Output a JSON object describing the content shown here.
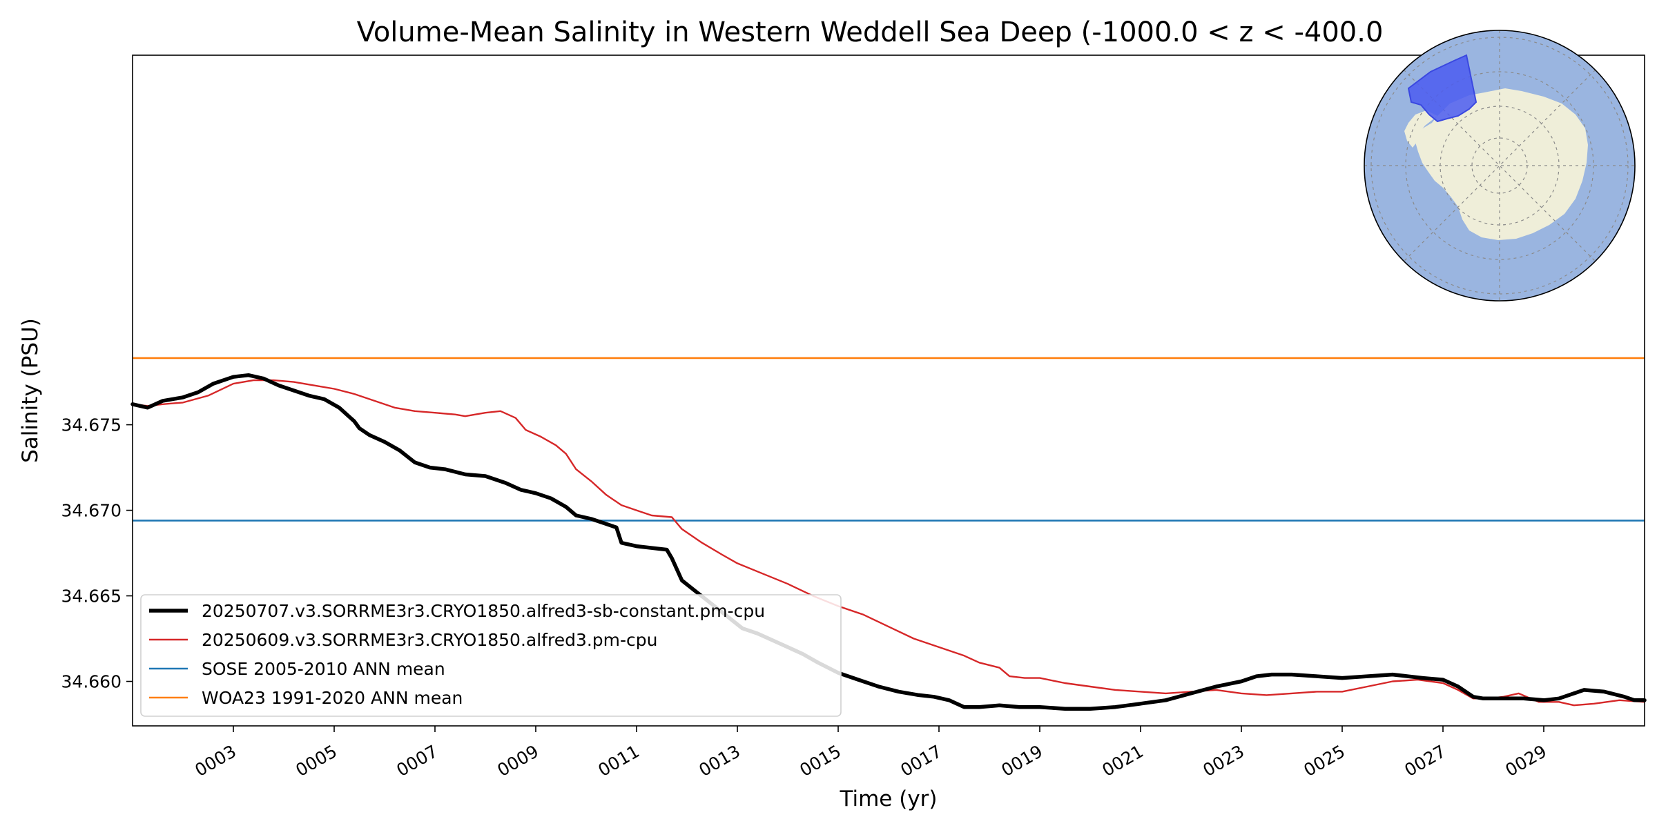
{
  "chart_data": {
    "type": "line",
    "title": "Volume-Mean Salinity in Western Weddell Sea Deep (-1000.0 < z < -400.0",
    "xlabel": "Time (yr)",
    "ylabel": "Salinity (PSU)",
    "xlim": [
      1,
      31
    ],
    "ylim": [
      34.6574,
      34.6966
    ],
    "x_ticks": [
      {
        "value": 3,
        "label": "0003"
      },
      {
        "value": 5,
        "label": "0005"
      },
      {
        "value": 7,
        "label": "0007"
      },
      {
        "value": 9,
        "label": "0009"
      },
      {
        "value": 11,
        "label": "0011"
      },
      {
        "value": 13,
        "label": "0013"
      },
      {
        "value": 15,
        "label": "0015"
      },
      {
        "value": 17,
        "label": "0017"
      },
      {
        "value": 19,
        "label": "0019"
      },
      {
        "value": 21,
        "label": "0021"
      },
      {
        "value": 23,
        "label": "0023"
      },
      {
        "value": 25,
        "label": "0025"
      },
      {
        "value": 27,
        "label": "0027"
      },
      {
        "value": 29,
        "label": "0029"
      }
    ],
    "y_ticks": [
      {
        "value": 34.66,
        "label": "34.660"
      },
      {
        "value": 34.665,
        "label": "34.665"
      },
      {
        "value": 34.67,
        "label": "34.670"
      },
      {
        "value": 34.675,
        "label": "34.675"
      }
    ],
    "grid": false,
    "legend_position": "lower-left",
    "series": [
      {
        "name": "20250707.v3.SORRME3r3.CRYO1850.alfred3-sb-constant.pm-cpu",
        "color": "#000000",
        "style": "thick",
        "x": [
          1.0,
          1.3,
          1.6,
          2.0,
          2.3,
          2.6,
          3.0,
          3.3,
          3.6,
          3.9,
          4.2,
          4.5,
          4.8,
          5.1,
          5.4,
          5.5,
          5.7,
          6.0,
          6.3,
          6.6,
          6.9,
          7.2,
          7.6,
          8.0,
          8.4,
          8.7,
          9.0,
          9.3,
          9.6,
          9.8,
          10.1,
          10.4,
          10.6,
          10.7,
          11.0,
          11.3,
          11.6,
          11.7,
          11.9,
          12.2,
          12.5,
          12.8,
          13.1,
          13.4,
          13.7,
          14.0,
          14.3,
          14.6,
          15.0,
          15.4,
          15.8,
          16.2,
          16.6,
          16.9,
          17.2,
          17.5,
          17.8,
          18.2,
          18.6,
          19.0,
          19.5,
          20.0,
          20.5,
          21.0,
          21.5,
          22.0,
          22.5,
          23.0,
          23.3,
          23.6,
          24.0,
          24.5,
          25.0,
          25.5,
          26.0,
          26.3,
          26.6,
          27.0,
          27.3,
          27.6,
          27.8,
          28.2,
          28.6,
          29.0,
          29.3,
          29.6,
          29.8,
          30.2,
          30.6,
          30.8,
          31.0
        ],
        "y": [
          34.6762,
          34.676,
          34.6764,
          34.6766,
          34.6769,
          34.6774,
          34.6778,
          34.6779,
          34.6777,
          34.6773,
          34.677,
          34.6767,
          34.6765,
          34.676,
          34.6752,
          34.6748,
          34.6744,
          34.674,
          34.6735,
          34.6728,
          34.6725,
          34.6724,
          34.6721,
          34.672,
          34.6716,
          34.6712,
          34.671,
          34.6707,
          34.6702,
          34.6697,
          34.6695,
          34.6692,
          34.669,
          34.6681,
          34.6679,
          34.6678,
          34.6677,
          34.6672,
          34.6659,
          34.6652,
          34.6645,
          34.6638,
          34.6631,
          34.6628,
          34.6624,
          34.662,
          34.6616,
          34.6611,
          34.6605,
          34.6601,
          34.6597,
          34.6594,
          34.6592,
          34.6591,
          34.6589,
          34.6585,
          34.6585,
          34.6586,
          34.6585,
          34.6585,
          34.6584,
          34.6584,
          34.6585,
          34.6587,
          34.6589,
          34.6593,
          34.6597,
          34.66,
          34.6603,
          34.6604,
          34.6604,
          34.6603,
          34.6602,
          34.6603,
          34.6604,
          34.6603,
          34.6602,
          34.6601,
          34.6597,
          34.6591,
          34.659,
          34.659,
          34.659,
          34.6589,
          34.659,
          34.6593,
          34.6595,
          34.6594,
          34.6591,
          34.6589,
          34.6589
        ]
      },
      {
        "name": "20250609.v3.SORRME3r3.CRYO1850.alfred3.pm-cpu",
        "color": "#d62728",
        "style": "thin",
        "x": [
          1.0,
          1.3,
          1.6,
          2.0,
          2.5,
          3.0,
          3.4,
          3.8,
          4.2,
          4.6,
          5.0,
          5.4,
          5.8,
          6.2,
          6.6,
          7.0,
          7.4,
          7.6,
          8.0,
          8.3,
          8.6,
          8.8,
          9.1,
          9.4,
          9.6,
          9.8,
          10.1,
          10.4,
          10.7,
          11.0,
          11.3,
          11.7,
          11.9,
          12.3,
          12.7,
          13.0,
          13.5,
          14.0,
          14.5,
          15.0,
          15.5,
          16.0,
          16.5,
          17.0,
          17.5,
          17.8,
          18.2,
          18.4,
          18.7,
          19.0,
          19.5,
          20.0,
          20.5,
          21.0,
          21.5,
          22.0,
          22.5,
          23.0,
          23.5,
          24.0,
          24.5,
          25.0,
          25.5,
          26.0,
          26.5,
          27.0,
          27.3,
          27.6,
          27.9,
          28.2,
          28.5,
          28.9,
          29.3,
          29.6,
          30.0,
          30.5,
          31.0
        ],
        "y": [
          34.6762,
          34.6761,
          34.6762,
          34.6763,
          34.6767,
          34.6774,
          34.6776,
          34.6776,
          34.6775,
          34.6773,
          34.6771,
          34.6768,
          34.6764,
          34.676,
          34.6758,
          34.6757,
          34.6756,
          34.6755,
          34.6757,
          34.6758,
          34.6754,
          34.6747,
          34.6743,
          34.6738,
          34.6733,
          34.6724,
          34.6717,
          34.6709,
          34.6703,
          34.67,
          34.6697,
          34.6696,
          34.6689,
          34.6681,
          34.6674,
          34.6669,
          34.6663,
          34.6657,
          34.665,
          34.6644,
          34.6639,
          34.6632,
          34.6625,
          34.662,
          34.6615,
          34.6611,
          34.6608,
          34.6603,
          34.6602,
          34.6602,
          34.6599,
          34.6597,
          34.6595,
          34.6594,
          34.6593,
          34.6594,
          34.6595,
          34.6593,
          34.6592,
          34.6593,
          34.6594,
          34.6594,
          34.6597,
          34.66,
          34.6601,
          34.6599,
          34.6595,
          34.659,
          34.659,
          34.6591,
          34.6593,
          34.6588,
          34.6588,
          34.6586,
          34.6587,
          34.6589,
          34.6588
        ]
      },
      {
        "name": "SOSE 2005-2010 ANN mean",
        "color": "#1f77b4",
        "style": "hline",
        "value": 34.6694
      },
      {
        "name": "WOA23 1991-2020 ANN mean",
        "color": "#ff7f0e",
        "style": "hline",
        "value": 34.6789
      }
    ]
  },
  "inset_map": {
    "type": "south-polar-stereographic",
    "ocean_color": "#9ab5e0",
    "land_color": "#efeed9",
    "highlight_color": "#4b5cf0",
    "highlight_region": "Western Weddell Sea"
  }
}
